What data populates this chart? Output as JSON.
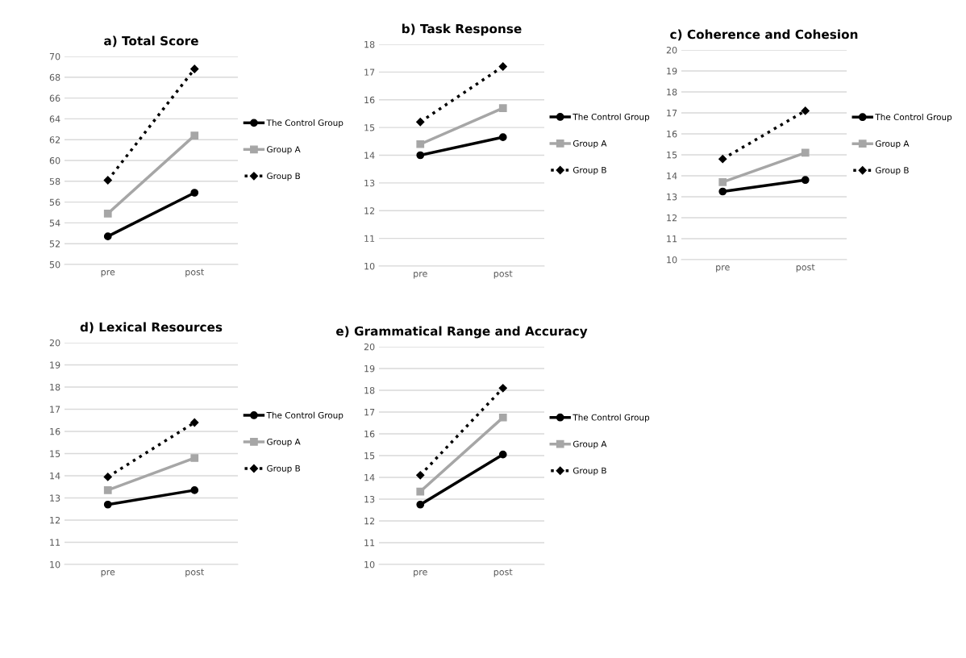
{
  "chart_data": [
    {
      "type": "line",
      "title": "a) Total Score",
      "categories": [
        "pre",
        "post"
      ],
      "ylim": [
        50,
        70
      ],
      "yticks": [
        50,
        52,
        54,
        56,
        58,
        60,
        62,
        64,
        66,
        68,
        70
      ],
      "grid": "y",
      "legend": "right",
      "series": [
        {
          "name": "The Control Group",
          "color": "#000000",
          "marker": "circle",
          "line_style": "solid",
          "values": [
            52.7,
            56.9
          ]
        },
        {
          "name": "Group A",
          "color": "#a6a6a6",
          "marker": "square",
          "line_style": "solid",
          "values": [
            54.9,
            62.4
          ]
        },
        {
          "name": "Group B",
          "color": "#000000",
          "marker": "diamond",
          "line_style": "dotted",
          "values": [
            58.1,
            68.8
          ]
        }
      ]
    },
    {
      "type": "line",
      "title": "b) Task Response",
      "categories": [
        "pre",
        "post"
      ],
      "ylim": [
        10,
        18
      ],
      "yticks": [
        10,
        11,
        12,
        13,
        14,
        15,
        16,
        17,
        18
      ],
      "grid": "y",
      "legend": "right",
      "series": [
        {
          "name": "The Control Group",
          "color": "#000000",
          "marker": "circle",
          "line_style": "solid",
          "values": [
            14.0,
            14.65
          ]
        },
        {
          "name": "Group A",
          "color": "#a6a6a6",
          "marker": "square",
          "line_style": "solid",
          "values": [
            14.4,
            15.7
          ]
        },
        {
          "name": "Group B",
          "color": "#000000",
          "marker": "diamond",
          "line_style": "dotted",
          "values": [
            15.2,
            17.2
          ]
        }
      ]
    },
    {
      "type": "line",
      "title": "c) Coherence and Cohesion",
      "categories": [
        "pre",
        "post"
      ],
      "ylim": [
        10,
        20
      ],
      "yticks": [
        10,
        11,
        12,
        13,
        14,
        15,
        16,
        17,
        18,
        19,
        20
      ],
      "grid": "y",
      "legend": "right",
      "series": [
        {
          "name": "The Control Group",
          "color": "#000000",
          "marker": "circle",
          "line_style": "solid",
          "values": [
            13.25,
            13.8
          ]
        },
        {
          "name": "Group A",
          "color": "#a6a6a6",
          "marker": "square",
          "line_style": "solid",
          "values": [
            13.7,
            15.1
          ]
        },
        {
          "name": "Group B",
          "color": "#000000",
          "marker": "diamond",
          "line_style": "dotted",
          "values": [
            14.8,
            17.1
          ]
        }
      ]
    },
    {
      "type": "line",
      "title": "d) Lexical Resources",
      "categories": [
        "pre",
        "post"
      ],
      "ylim": [
        10,
        20
      ],
      "yticks": [
        10,
        11,
        12,
        13,
        14,
        15,
        16,
        17,
        18,
        19,
        20
      ],
      "grid": "y",
      "legend": "right",
      "series": [
        {
          "name": "The Control Group",
          "color": "#000000",
          "marker": "circle",
          "line_style": "solid",
          "values": [
            12.7,
            13.35
          ]
        },
        {
          "name": "Group A",
          "color": "#a6a6a6",
          "marker": "square",
          "line_style": "solid",
          "values": [
            13.35,
            14.8
          ]
        },
        {
          "name": "Group B",
          "color": "#000000",
          "marker": "diamond",
          "line_style": "dotted",
          "values": [
            13.95,
            16.4
          ]
        }
      ]
    },
    {
      "type": "line",
      "title": "e) Grammatical Range and Accuracy",
      "categories": [
        "pre",
        "post"
      ],
      "ylim": [
        10,
        20
      ],
      "yticks": [
        10,
        11,
        12,
        13,
        14,
        15,
        16,
        17,
        18,
        19,
        20
      ],
      "grid": "y",
      "legend": "right",
      "series": [
        {
          "name": "The Control Group",
          "color": "#000000",
          "marker": "circle",
          "line_style": "solid",
          "values": [
            12.75,
            15.05
          ]
        },
        {
          "name": "Group A",
          "color": "#a6a6a6",
          "marker": "square",
          "line_style": "solid",
          "values": [
            13.35,
            16.75
          ]
        },
        {
          "name": "Group B",
          "color": "#000000",
          "marker": "diamond",
          "line_style": "dotted",
          "values": [
            14.1,
            18.1
          ]
        }
      ]
    }
  ]
}
